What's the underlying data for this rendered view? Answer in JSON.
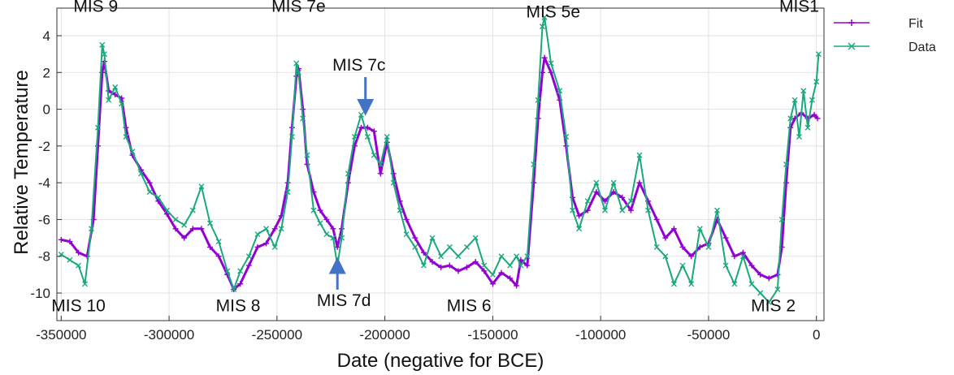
{
  "chart_data": {
    "type": "line",
    "xlabel": "Date (negative for BCE)",
    "ylabel": "Relative Temperature",
    "xlim": [
      -352000,
      3500
    ],
    "ylim": [
      -11.5,
      5.5
    ],
    "x_ticks": [
      -350000,
      -300000,
      -250000,
      -200000,
      -150000,
      -100000,
      -50000,
      0
    ],
    "y_ticks": [
      -10,
      -8,
      -6,
      -4,
      -2,
      0,
      2,
      4
    ],
    "grid": true,
    "legend_position": "outside-right",
    "series": [
      {
        "name": "Fit",
        "color": "#9400d3",
        "marker": "+",
        "points": [
          [
            -350000,
            -7.1
          ],
          [
            -346000,
            -7.2
          ],
          [
            -342000,
            -7.8
          ],
          [
            -338000,
            -8.0
          ],
          [
            -335000,
            -6.0
          ],
          [
            -333000,
            -2.0
          ],
          [
            -331000,
            2.0
          ],
          [
            -330000,
            2.6
          ],
          [
            -328000,
            1.0
          ],
          [
            -325000,
            0.8
          ],
          [
            -322000,
            0.6
          ],
          [
            -320000,
            -1.0
          ],
          [
            -317000,
            -2.5
          ],
          [
            -313000,
            -3.3
          ],
          [
            -309000,
            -4.0
          ],
          [
            -305000,
            -5.0
          ],
          [
            -301000,
            -5.7
          ],
          [
            -297000,
            -6.5
          ],
          [
            -293000,
            -7.0
          ],
          [
            -289000,
            -6.5
          ],
          [
            -285000,
            -6.5
          ],
          [
            -281000,
            -7.5
          ],
          [
            -277000,
            -8.0
          ],
          [
            -273000,
            -9.0
          ],
          [
            -270000,
            -9.8
          ],
          [
            -267000,
            -9.5
          ],
          [
            -263000,
            -8.5
          ],
          [
            -259000,
            -7.5
          ],
          [
            -255000,
            -7.3
          ],
          [
            -251000,
            -6.5
          ],
          [
            -248000,
            -5.8
          ],
          [
            -245000,
            -4.0
          ],
          [
            -243000,
            -1.0
          ],
          [
            -241000,
            1.8
          ],
          [
            -240000,
            2.2
          ],
          [
            -238000,
            0.0
          ],
          [
            -236000,
            -3.0
          ],
          [
            -233000,
            -4.5
          ],
          [
            -230000,
            -5.5
          ],
          [
            -227000,
            -6.0
          ],
          [
            -224000,
            -6.5
          ],
          [
            -222000,
            -7.5
          ],
          [
            -220000,
            -6.5
          ],
          [
            -217000,
            -4.0
          ],
          [
            -214000,
            -2.0
          ],
          [
            -211000,
            -1.0
          ],
          [
            -208000,
            -1.0
          ],
          [
            -205000,
            -1.2
          ],
          [
            -202000,
            -3.5
          ],
          [
            -199000,
            -1.8
          ],
          [
            -196000,
            -3.5
          ],
          [
            -193000,
            -5.0
          ],
          [
            -190000,
            -6.0
          ],
          [
            -186000,
            -7.0
          ],
          [
            -182000,
            -7.8
          ],
          [
            -178000,
            -8.3
          ],
          [
            -174000,
            -8.6
          ],
          [
            -170000,
            -8.5
          ],
          [
            -166000,
            -8.8
          ],
          [
            -162000,
            -8.6
          ],
          [
            -158000,
            -8.3
          ],
          [
            -154000,
            -8.8
          ],
          [
            -150000,
            -9.5
          ],
          [
            -146000,
            -8.9
          ],
          [
            -142000,
            -9.2
          ],
          [
            -139000,
            -9.6
          ],
          [
            -137000,
            -8.2
          ],
          [
            -134000,
            -8.5
          ],
          [
            -131000,
            -4.0
          ],
          [
            -129000,
            -0.5
          ],
          [
            -127000,
            2.0
          ],
          [
            -126000,
            2.8
          ],
          [
            -123000,
            2.0
          ],
          [
            -119000,
            0.5
          ],
          [
            -116000,
            -2.0
          ],
          [
            -113000,
            -4.8
          ],
          [
            -110000,
            -5.8
          ],
          [
            -106000,
            -5.5
          ],
          [
            -102000,
            -4.5
          ],
          [
            -98000,
            -5.0
          ],
          [
            -94000,
            -4.5
          ],
          [
            -90000,
            -4.8
          ],
          [
            -86000,
            -5.5
          ],
          [
            -82000,
            -4.0
          ],
          [
            -78000,
            -5.0
          ],
          [
            -74000,
            -6.0
          ],
          [
            -70000,
            -7.0
          ],
          [
            -66000,
            -6.5
          ],
          [
            -62000,
            -7.5
          ],
          [
            -58000,
            -8.0
          ],
          [
            -54000,
            -7.5
          ],
          [
            -50000,
            -7.3
          ],
          [
            -46000,
            -6.0
          ],
          [
            -42000,
            -7.0
          ],
          [
            -38000,
            -8.0
          ],
          [
            -34000,
            -7.8
          ],
          [
            -30000,
            -8.5
          ],
          [
            -26000,
            -9.0
          ],
          [
            -22000,
            -9.2
          ],
          [
            -18000,
            -9.0
          ],
          [
            -16000,
            -7.5
          ],
          [
            -14000,
            -4.0
          ],
          [
            -12000,
            -1.0
          ],
          [
            -10000,
            -0.5
          ],
          [
            -7000,
            -0.2
          ],
          [
            -4000,
            -0.5
          ],
          [
            -1000,
            -0.3
          ],
          [
            500,
            -0.5
          ]
        ]
      },
      {
        "name": "Data",
        "color": "#1aa87f",
        "marker": "x",
        "points": [
          [
            -350000,
            -7.9
          ],
          [
            -346000,
            -8.2
          ],
          [
            -342000,
            -8.5
          ],
          [
            -339000,
            -9.5
          ],
          [
            -336000,
            -6.5
          ],
          [
            -333000,
            -1.0
          ],
          [
            -331000,
            3.5
          ],
          [
            -330000,
            3.0
          ],
          [
            -328000,
            0.5
          ],
          [
            -325000,
            1.2
          ],
          [
            -322000,
            0.3
          ],
          [
            -320000,
            -1.5
          ],
          [
            -317000,
            -2.3
          ],
          [
            -313000,
            -3.5
          ],
          [
            -309000,
            -4.5
          ],
          [
            -305000,
            -4.8
          ],
          [
            -301000,
            -5.5
          ],
          [
            -297000,
            -6.0
          ],
          [
            -293000,
            -6.3
          ],
          [
            -289000,
            -5.5
          ],
          [
            -285000,
            -4.2
          ],
          [
            -281000,
            -6.2
          ],
          [
            -277000,
            -7.2
          ],
          [
            -273000,
            -8.8
          ],
          [
            -270000,
            -9.8
          ],
          [
            -267000,
            -8.8
          ],
          [
            -263000,
            -8.0
          ],
          [
            -259000,
            -6.8
          ],
          [
            -255000,
            -6.5
          ],
          [
            -251000,
            -7.5
          ],
          [
            -248000,
            -6.5
          ],
          [
            -245000,
            -4.5
          ],
          [
            -243000,
            -1.5
          ],
          [
            -241000,
            2.5
          ],
          [
            -240000,
            2.0
          ],
          [
            -238000,
            -0.5
          ],
          [
            -236000,
            -2.5
          ],
          [
            -233000,
            -5.5
          ],
          [
            -230000,
            -6.2
          ],
          [
            -227000,
            -6.8
          ],
          [
            -224000,
            -7.0
          ],
          [
            -222000,
            -8.5
          ],
          [
            -220000,
            -7.0
          ],
          [
            -217000,
            -3.5
          ],
          [
            -214000,
            -1.5
          ],
          [
            -211000,
            -0.3
          ],
          [
            -208000,
            -1.5
          ],
          [
            -205000,
            -2.5
          ],
          [
            -202000,
            -3.0
          ],
          [
            -199000,
            -1.5
          ],
          [
            -196000,
            -4.0
          ],
          [
            -193000,
            -5.5
          ],
          [
            -190000,
            -6.8
          ],
          [
            -186000,
            -7.5
          ],
          [
            -182000,
            -8.5
          ],
          [
            -178000,
            -7.0
          ],
          [
            -174000,
            -8.0
          ],
          [
            -170000,
            -7.5
          ],
          [
            -166000,
            -8.0
          ],
          [
            -162000,
            -7.5
          ],
          [
            -158000,
            -7.0
          ],
          [
            -154000,
            -8.5
          ],
          [
            -150000,
            -9.0
          ],
          [
            -146000,
            -8.0
          ],
          [
            -142000,
            -8.5
          ],
          [
            -139000,
            -8.0
          ],
          [
            -137000,
            -8.5
          ],
          [
            -134000,
            -8.0
          ],
          [
            -131000,
            -3.0
          ],
          [
            -129000,
            0.5
          ],
          [
            -127000,
            4.5
          ],
          [
            -126000,
            5.0
          ],
          [
            -123000,
            2.5
          ],
          [
            -119000,
            1.0
          ],
          [
            -116000,
            -1.5
          ],
          [
            -113000,
            -5.5
          ],
          [
            -110000,
            -6.5
          ],
          [
            -106000,
            -5.0
          ],
          [
            -102000,
            -4.0
          ],
          [
            -98000,
            -5.5
          ],
          [
            -94000,
            -4.0
          ],
          [
            -90000,
            -5.5
          ],
          [
            -86000,
            -5.0
          ],
          [
            -82000,
            -2.5
          ],
          [
            -78000,
            -5.5
          ],
          [
            -74000,
            -7.5
          ],
          [
            -70000,
            -8.0
          ],
          [
            -66000,
            -9.5
          ],
          [
            -62000,
            -8.5
          ],
          [
            -58000,
            -9.5
          ],
          [
            -54000,
            -6.5
          ],
          [
            -50000,
            -7.5
          ],
          [
            -46000,
            -5.5
          ],
          [
            -42000,
            -8.5
          ],
          [
            -38000,
            -9.5
          ],
          [
            -34000,
            -8.0
          ],
          [
            -30000,
            -9.5
          ],
          [
            -26000,
            -10.0
          ],
          [
            -22000,
            -10.5
          ],
          [
            -18000,
            -9.8
          ],
          [
            -16000,
            -6.0
          ],
          [
            -14000,
            -3.0
          ],
          [
            -12000,
            -0.5
          ],
          [
            -10000,
            0.5
          ],
          [
            -8000,
            -1.5
          ],
          [
            -6000,
            1.0
          ],
          [
            -4000,
            -1.0
          ],
          [
            -2000,
            0.5
          ],
          [
            0,
            1.5
          ],
          [
            1000,
            3.0
          ]
        ]
      }
    ],
    "annotations": [
      {
        "text": "MIS 9",
        "x": -334000,
        "y": 5.3
      },
      {
        "text": "MIS 7e",
        "x": -240000,
        "y": 5.3
      },
      {
        "text": "MIS 5e",
        "x": -122000,
        "y": 5.0
      },
      {
        "text": "MIS1",
        "x": -8000,
        "y": 5.3
      },
      {
        "text": "MIS 7c",
        "x": -212000,
        "y": 2.1,
        "arrow_to": [
          -209000,
          0.1
        ]
      },
      {
        "text": "MIS 10",
        "x": -342000,
        "y": -11.0
      },
      {
        "text": "MIS 8",
        "x": -268000,
        "y": -11.0
      },
      {
        "text": "MIS 7d",
        "x": -219000,
        "y": -10.7,
        "arrow_to": [
          -222000,
          -8.5
        ]
      },
      {
        "text": "MIS 6",
        "x": -161000,
        "y": -11.0
      },
      {
        "text": "MIS 2",
        "x": -20000,
        "y": -11.0
      }
    ]
  }
}
